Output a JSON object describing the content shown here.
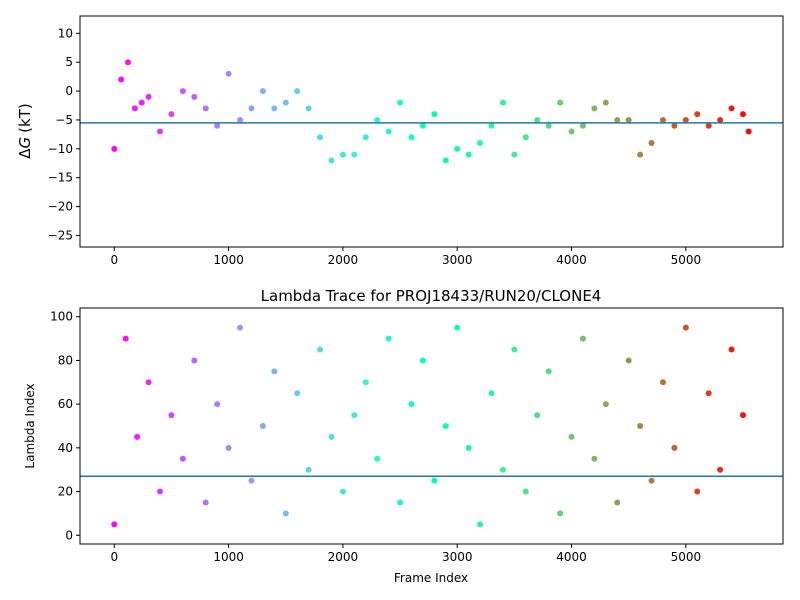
{
  "chart_data": [
    {
      "type": "scatter",
      "title": "",
      "xlabel": "",
      "ylabel": "ΔG (kT)",
      "ylabel_parts": {
        "symbol": "ΔG",
        "symbol_math": "Δ",
        "symbol_var": "G",
        "unit": "(kT)"
      },
      "xlim": [
        -300,
        5850
      ],
      "ylim": [
        -27,
        13
      ],
      "xticks": [
        0,
        1000,
        2000,
        3000,
        4000,
        5000
      ],
      "xticklabels": [
        "0",
        "1000",
        "2000",
        "3000",
        "4000",
        "5000"
      ],
      "yticks": [
        10,
        5,
        0,
        -5,
        -10,
        -15,
        -20,
        -25
      ],
      "yticklabels": [
        "10",
        "5",
        "0",
        "−5",
        "−10",
        "−15",
        "−20",
        "−25"
      ],
      "hline": -5.5,
      "color_by": "frame index (rainbow colormap)",
      "series": [
        {
          "x": [
            0,
            60,
            120,
            180,
            240,
            300,
            400,
            500,
            600,
            700,
            800,
            900,
            1000,
            1100,
            1200,
            1300,
            1400,
            1500,
            1600,
            1700,
            1800,
            1900,
            2000,
            2100,
            2200,
            2300,
            2400,
            2500,
            2600,
            2700,
            2800,
            2900,
            3000,
            3100,
            3200,
            3300,
            3400,
            3500,
            3600,
            3700,
            3800,
            3900,
            4000,
            4100,
            4200,
            4300,
            4400,
            4500,
            4600,
            4700,
            4800,
            4900,
            5000,
            5100,
            5200,
            5300,
            5400,
            5500,
            5550
          ],
          "y": [
            -10,
            2,
            5,
            -3,
            -2,
            -1,
            -7,
            -4,
            0,
            -1,
            -3,
            -6,
            3,
            -5,
            -3,
            0,
            -3,
            -2,
            0,
            -3,
            -8,
            -12,
            -11,
            -11,
            -8,
            -5,
            -7,
            -2,
            -8,
            -6,
            -4,
            -12,
            -10,
            -11,
            -9,
            -6,
            -2,
            -11,
            -8,
            -5,
            -6,
            -2,
            -7,
            -6,
            -3,
            -2,
            -5,
            -5,
            -11,
            -9,
            -5,
            -6,
            -5,
            -4,
            -6,
            -5,
            -3,
            -4,
            -7
          ]
        }
      ]
    },
    {
      "type": "scatter",
      "title": "Lambda Trace for PROJ18433/RUN20/CLONE4",
      "xlabel": "Frame Index",
      "ylabel": "Lambda Index",
      "xlim": [
        -300,
        5850
      ],
      "ylim": [
        -4,
        104
      ],
      "xticks": [
        0,
        1000,
        2000,
        3000,
        4000,
        5000
      ],
      "xticklabels": [
        "0",
        "1000",
        "2000",
        "3000",
        "4000",
        "5000"
      ],
      "yticks": [
        0,
        20,
        40,
        60,
        80,
        100
      ],
      "yticklabels": [
        "0",
        "20",
        "40",
        "60",
        "80",
        "100"
      ],
      "hline": 27,
      "color_by": "frame index (rainbow colormap)",
      "series": [
        {
          "x": [
            0,
            100,
            200,
            300,
            400,
            500,
            600,
            700,
            800,
            900,
            1000,
            1100,
            1200,
            1300,
            1400,
            1500,
            1600,
            1700,
            1800,
            1900,
            2000,
            2100,
            2200,
            2300,
            2400,
            2500,
            2600,
            2700,
            2800,
            2900,
            3000,
            3100,
            3200,
            3300,
            3400,
            3500,
            3600,
            3700,
            3800,
            3900,
            4000,
            4100,
            4200,
            4300,
            4400,
            4500,
            4600,
            4700,
            4800,
            4900,
            5000,
            5100,
            5200,
            5300,
            5400,
            5500
          ],
          "y": [
            5,
            90,
            45,
            70,
            20,
            55,
            35,
            80,
            15,
            60,
            40,
            95,
            25,
            50,
            75,
            10,
            65,
            30,
            85,
            45,
            20,
            55,
            70,
            35,
            90,
            15,
            60,
            80,
            25,
            50,
            95,
            40,
            5,
            65,
            30,
            85,
            20,
            55,
            75,
            10,
            45,
            90,
            35,
            60,
            15,
            80,
            50,
            25,
            70,
            40,
            95,
            20,
            65,
            30,
            85,
            55
          ]
        }
      ]
    }
  ]
}
